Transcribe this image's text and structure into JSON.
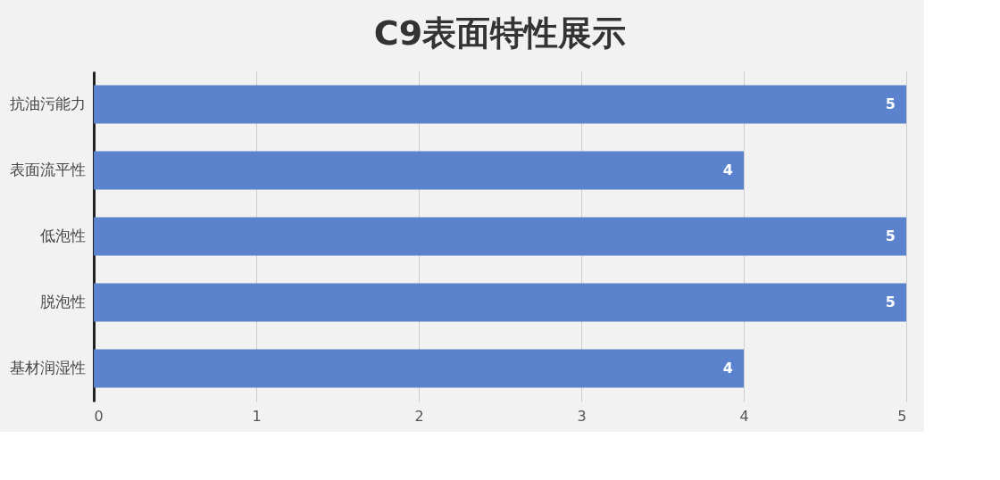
{
  "chart_data": {
    "type": "bar",
    "orientation": "horizontal",
    "title": "C9表面特性展示",
    "categories": [
      "抗油污能力",
      "表面流平性",
      "低泡性",
      "脱泡性",
      "基材润湿性"
    ],
    "values": [
      5,
      4,
      5,
      5,
      4
    ],
    "color": "#5b82cc",
    "xlim": [
      0,
      5
    ],
    "xticks": [
      0,
      1,
      2,
      3,
      4,
      5
    ],
    "grid": "x",
    "data_labels": true
  }
}
